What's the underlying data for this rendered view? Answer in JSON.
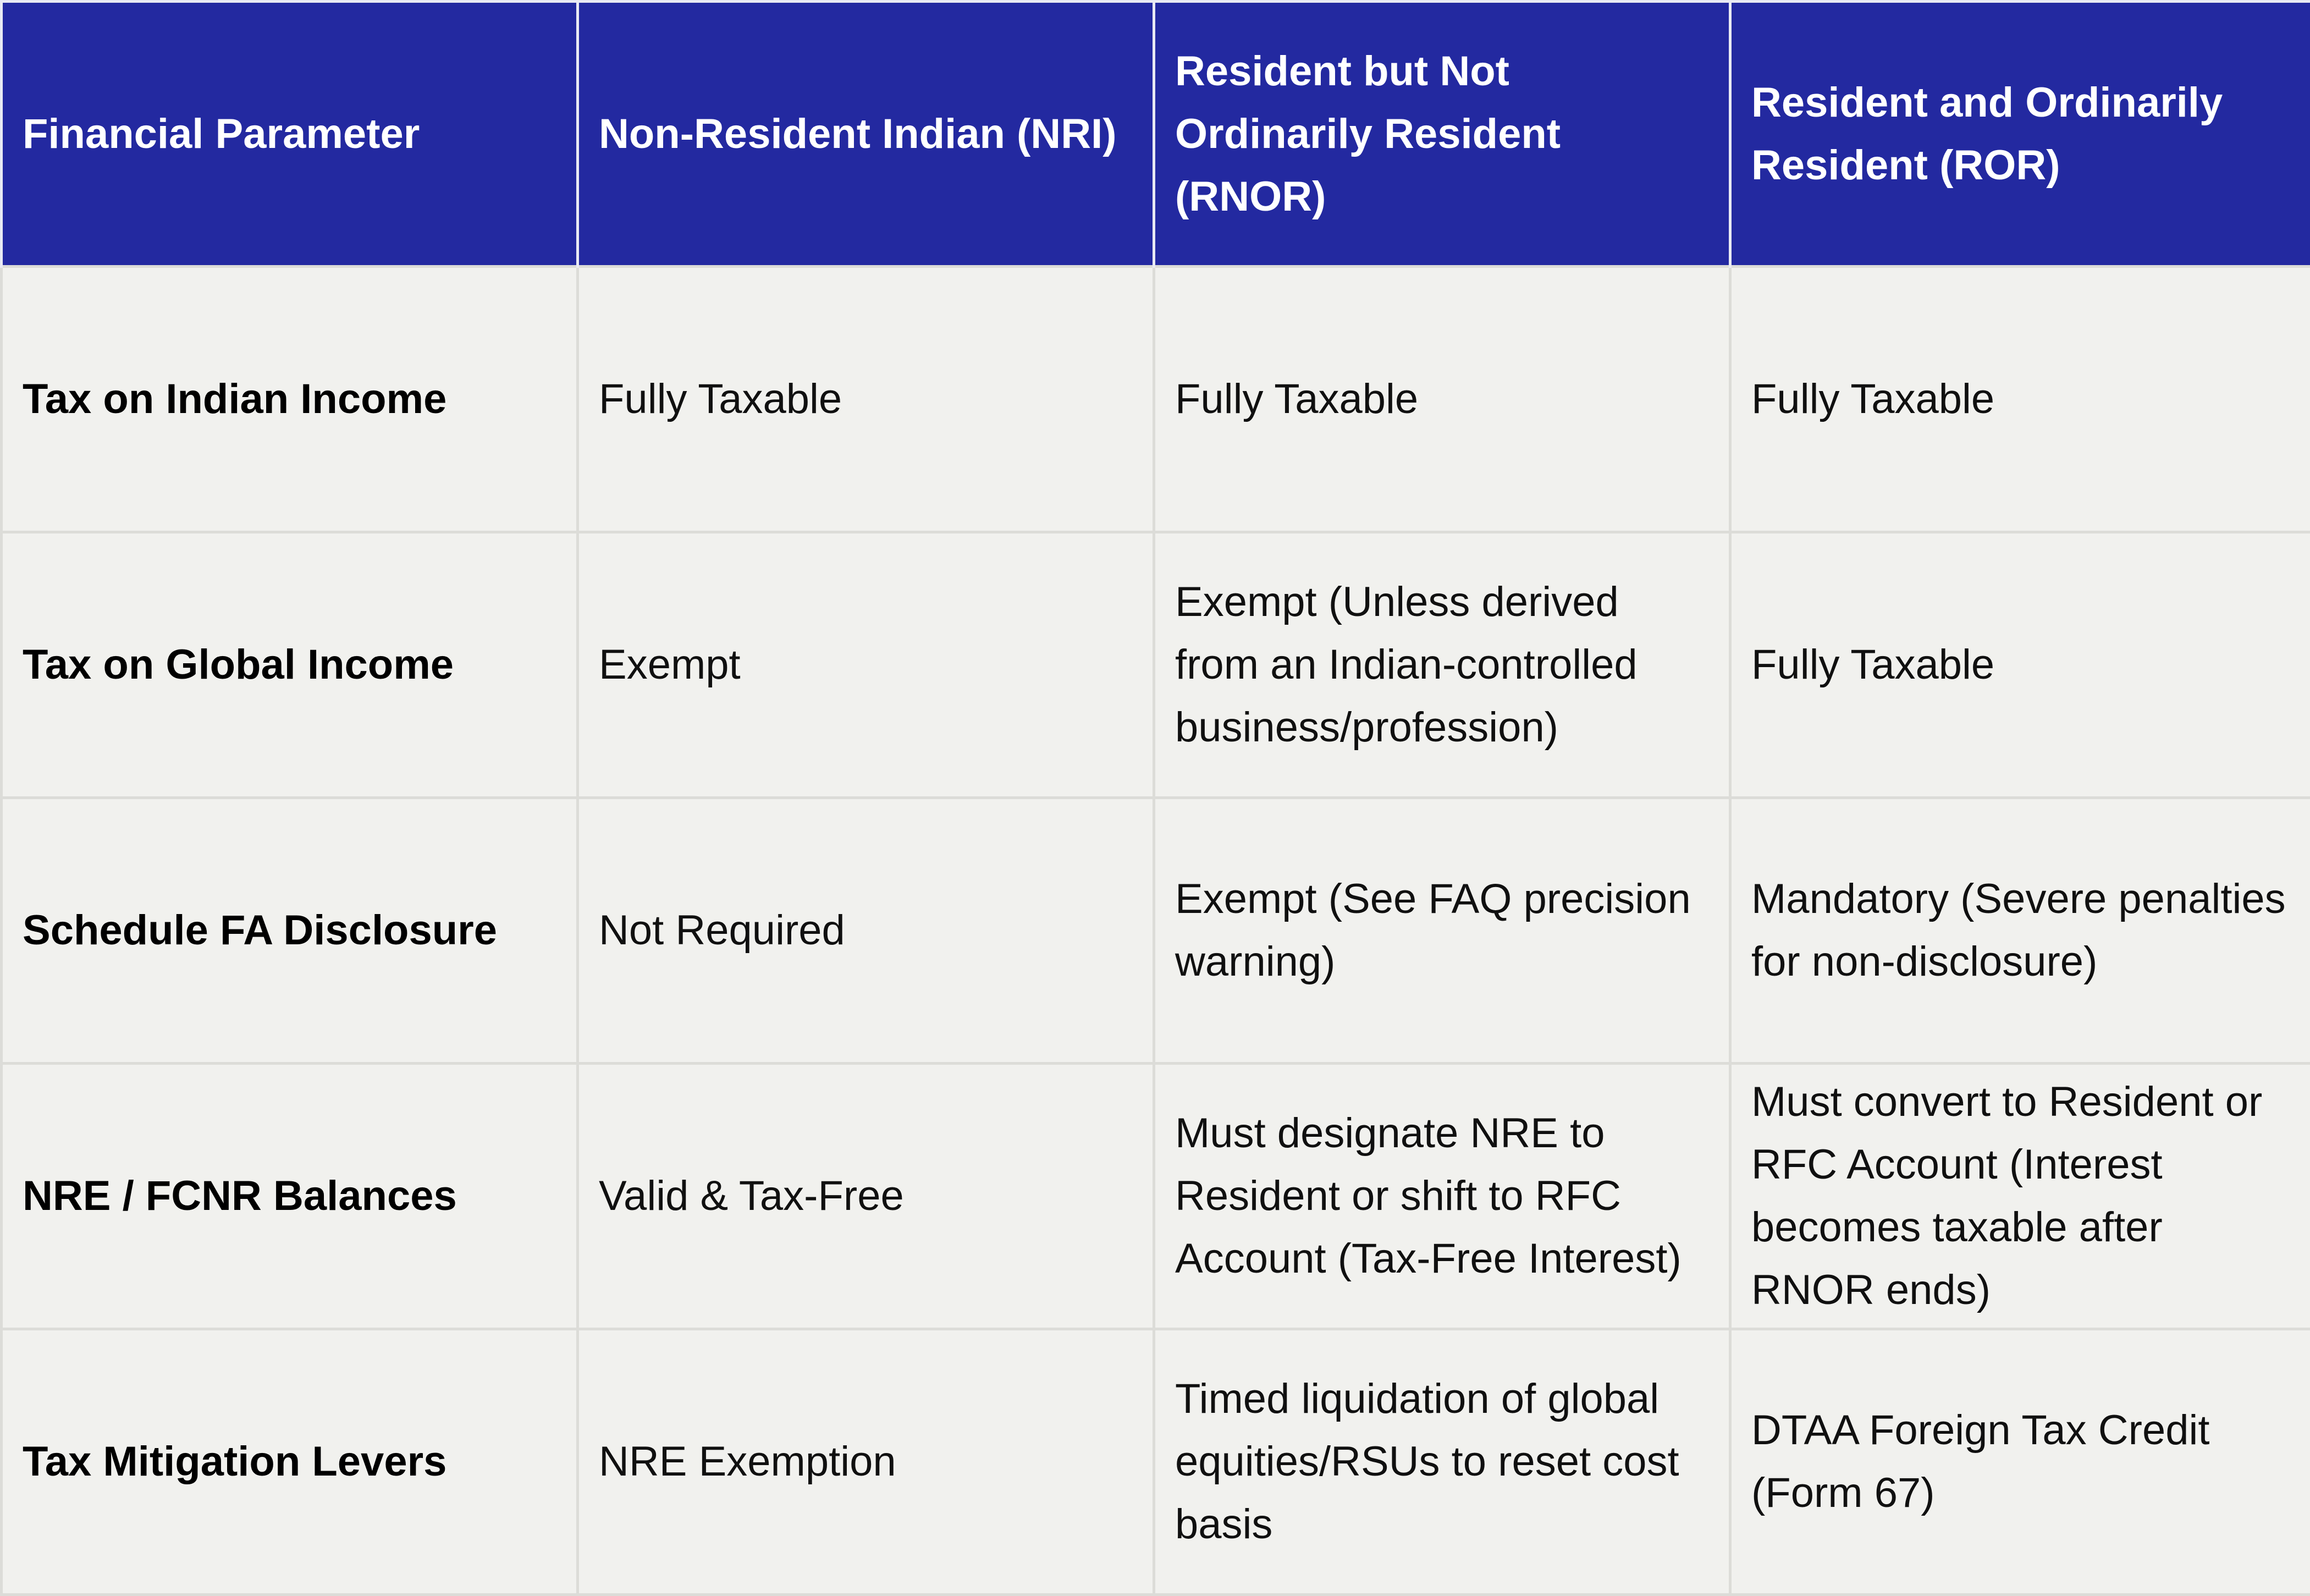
{
  "table": {
    "headers": [
      "Financial Parameter",
      "Non-Resident Indian (NRI)",
      "Resident but Not Ordinarily Resident (RNOR)",
      "Resident and Ordinarily Resident (ROR)"
    ],
    "rows": [
      [
        "Tax on Indian Income",
        "Fully Taxable",
        "Fully Taxable",
        "Fully Taxable"
      ],
      [
        "Tax on Global Income",
        "Exempt",
        "Exempt (Unless derived from an Indian-controlled business/profession)",
        "Fully Taxable"
      ],
      [
        "Schedule FA Disclosure",
        "Not Required",
        "Exempt (See FAQ precision warning)",
        "Mandatory (Severe penalties for non-disclosure)"
      ],
      [
        "NRE / FCNR Balances",
        "Valid & Tax-Free",
        "Must designate NRE to Resident or shift to RFC Account (Tax-Free Interest)",
        "Must convert to Resident or RFC Account (Interest becomes taxable after RNOR ends)"
      ],
      [
        "Tax Mitigation Levers",
        "NRE Exemption",
        "Timed liquidation of global equities/RSUs to reset cost basis",
        "DTAA Foreign Tax Credit (Form 67)"
      ]
    ]
  },
  "colors": {
    "header_background": "#2329a0",
    "header_text": "#ffffff",
    "body_background": "#f1f1ee",
    "grid_lines": "#dcdcd8"
  }
}
